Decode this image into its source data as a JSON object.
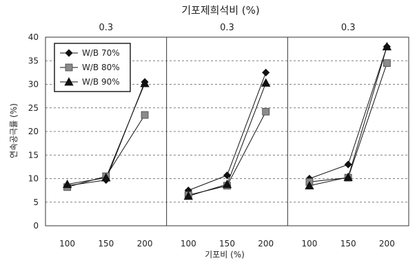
{
  "chart_data": {
    "type": "line",
    "title": "기포제희석비 (%)",
    "xlabel": "기포비 (%)",
    "ylabel": "연속공극률 (%)",
    "ylim": [
      0,
      40
    ],
    "yticks": [
      0,
      5,
      10,
      15,
      20,
      25,
      30,
      35,
      40
    ],
    "grid": "horizontal dashed",
    "legend_position": "top-left",
    "panels": [
      {
        "label": "0.3",
        "categories": [
          "100",
          "150",
          "200"
        ],
        "series": [
          {
            "name": "W/B 70%",
            "marker": "diamond",
            "values": [
              8.5,
              9.7,
              30.5
            ]
          },
          {
            "name": "W/B 80%",
            "marker": "square",
            "values": [
              8.2,
              10.5,
              23.5
            ]
          },
          {
            "name": "W/B 90%",
            "marker": "triangle",
            "values": [
              8.8,
              10.2,
              30.2
            ]
          }
        ]
      },
      {
        "label": "0.3",
        "categories": [
          "100",
          "150",
          "200"
        ],
        "series": [
          {
            "name": "W/B 70%",
            "marker": "diamond",
            "values": [
              7.5,
              10.7,
              32.5
            ]
          },
          {
            "name": "W/B 80%",
            "marker": "square",
            "values": [
              6.5,
              8.5,
              24.2
            ]
          },
          {
            "name": "W/B 90%",
            "marker": "triangle",
            "values": [
              6.3,
              8.8,
              30.3
            ]
          }
        ]
      },
      {
        "label": "0.3",
        "categories": [
          "100",
          "150",
          "200"
        ],
        "series": [
          {
            "name": "W/B 70%",
            "marker": "diamond",
            "values": [
              10.0,
              13.0,
              38.0
            ]
          },
          {
            "name": "W/B 80%",
            "marker": "square",
            "values": [
              9.3,
              10.2,
              34.5
            ]
          },
          {
            "name": "W/B 90%",
            "marker": "triangle",
            "values": [
              8.5,
              10.3,
              38.0
            ]
          }
        ]
      }
    ]
  }
}
